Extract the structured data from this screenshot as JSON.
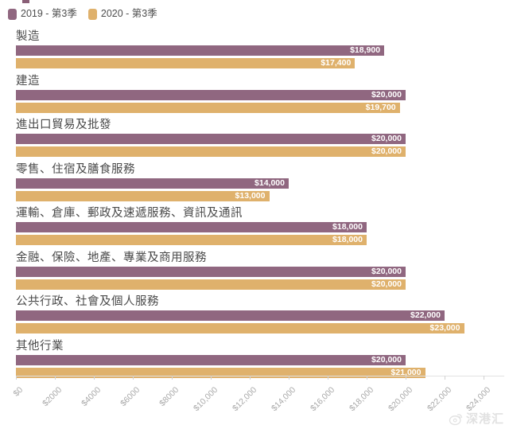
{
  "legend": {
    "items": [
      {
        "label": "2019 - 第3季",
        "color": "#906780"
      },
      {
        "label": "2020 - 第3季",
        "color": "#DFB16C"
      }
    ]
  },
  "chart_data": {
    "type": "bar",
    "orientation": "horizontal",
    "title": "",
    "xlabel": "",
    "ylabel": "",
    "xlim": [
      0,
      24000
    ],
    "grid": false,
    "legend_position": "top-left",
    "categories": [
      "製造",
      "建造",
      "進出口貿易及批發",
      "零售、住宿及膳食服務",
      "運輸、倉庫、郵政及速遞服務、資訊及通訊",
      "金融、保險、地產、專業及商用服務",
      "公共行政、社會及個人服務",
      "其他行業"
    ],
    "series": [
      {
        "name": "2019 - 第3季",
        "color": "#906780",
        "values": [
          18900,
          20000,
          20000,
          14000,
          18000,
          20000,
          22000,
          20000
        ],
        "labels": [
          "$18,900",
          "$20,000",
          "$20,000",
          "$14,000",
          "$18,000",
          "$20,000",
          "$22,000",
          "$20,000"
        ]
      },
      {
        "name": "2020 - 第3季",
        "color": "#DFB16C",
        "values": [
          17400,
          19700,
          20000,
          13000,
          18000,
          20000,
          23000,
          21000
        ],
        "labels": [
          "$17,400",
          "$19,700",
          "$20,000",
          "$13,000",
          "$18,000",
          "$20,000",
          "$23,000",
          "$21,000"
        ]
      }
    ],
    "x_tick_values": [
      0,
      2000,
      4000,
      6000,
      8000,
      10000,
      12000,
      14000,
      16000,
      18000,
      20000,
      22000,
      24000
    ],
    "x_tick_labels": [
      "$0",
      "$2000",
      "$4000",
      "$6000",
      "$8000",
      "$10,000",
      "$12,000",
      "$14,000",
      "$16,000",
      "$18,000",
      "$20,000",
      "$22,000",
      "$24,000"
    ]
  },
  "watermark": {
    "text": "深港汇"
  }
}
